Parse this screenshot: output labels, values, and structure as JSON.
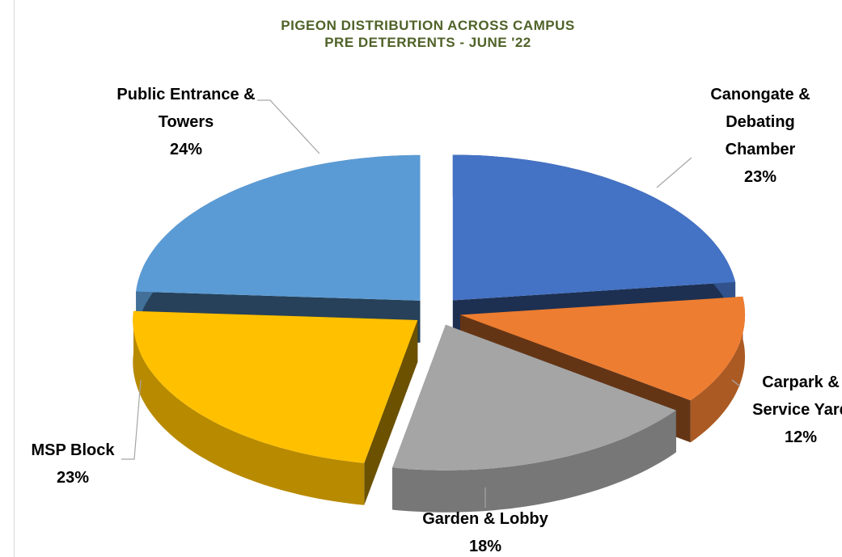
{
  "chart_data": {
    "type": "pie",
    "title": "PIGEON DISTRIBUTION ACROSS CAMPUS",
    "subtitle": "PRE DETERRENTS - JUNE '22",
    "categories": [
      "Canongate & Debating Chamber",
      "Carpark & Service Yard",
      "Garden & Lobby",
      "MSP Block",
      "Public Entrance & Towers"
    ],
    "values": [
      23,
      12,
      18,
      23,
      24
    ],
    "value_labels": [
      "23%",
      "12%",
      "18%",
      "23%",
      "24%"
    ],
    "colors": [
      "#4472c4",
      "#ed7d31",
      "#a5a5a5",
      "#ffc000",
      "#5b9bd5"
    ],
    "exploded": true,
    "three_d": true
  }
}
